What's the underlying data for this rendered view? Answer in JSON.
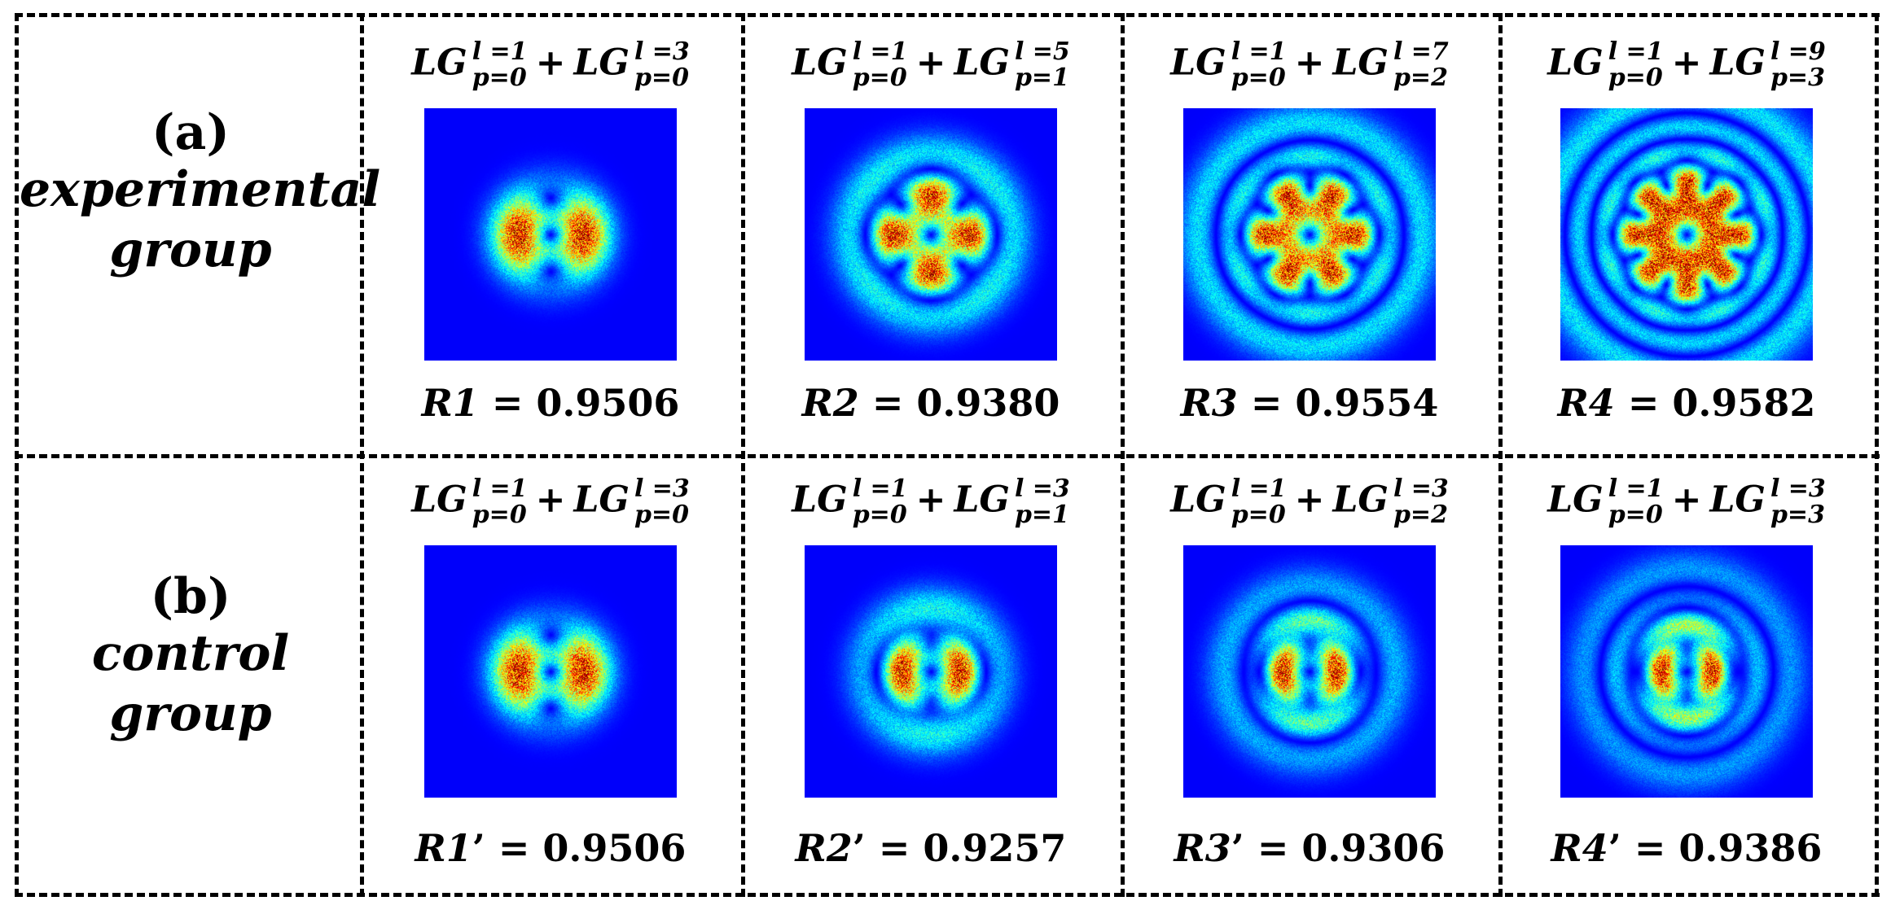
{
  "rows": [
    {
      "tag": "(a)",
      "name_line1": "experimental",
      "name_line2": "group",
      "cells": [
        {
          "term1": {
            "base": "LG",
            "l": "l =1",
            "p": "p=0"
          },
          "term2": {
            "base": "LG",
            "l": "l =3",
            "p": "p=0"
          },
          "ratio_var": "R1",
          "ratio_prime": "",
          "ratio_text": " = 0.9506",
          "l": 3,
          "p": 0
        },
        {
          "term1": {
            "base": "LG",
            "l": "l =1",
            "p": "p=0"
          },
          "term2": {
            "base": "LG",
            "l": "l =5",
            "p": "p=1"
          },
          "ratio_var": "R2",
          "ratio_prime": "",
          "ratio_text": " = 0.9380",
          "l": 5,
          "p": 1
        },
        {
          "term1": {
            "base": "LG",
            "l": "l =1",
            "p": "p=0"
          },
          "term2": {
            "base": "LG",
            "l": "l =7",
            "p": "p=2"
          },
          "ratio_var": "R3",
          "ratio_prime": "",
          "ratio_text": " = 0.9554",
          "l": 7,
          "p": 2
        },
        {
          "term1": {
            "base": "LG",
            "l": "l =1",
            "p": "p=0"
          },
          "term2": {
            "base": "LG",
            "l": "l =9",
            "p": "p=3"
          },
          "ratio_var": "R4",
          "ratio_prime": "",
          "ratio_text": " = 0.9582",
          "l": 9,
          "p": 3
        }
      ]
    },
    {
      "tag": "(b)",
      "name_line1": "control group",
      "name_line2": "",
      "cells": [
        {
          "term1": {
            "base": "LG",
            "l": "l =1",
            "p": "p=0"
          },
          "term2": {
            "base": "LG",
            "l": "l =3",
            "p": "p=0"
          },
          "ratio_var": "R1",
          "ratio_prime": "’",
          "ratio_text": " = 0.9506",
          "l": 3,
          "p": 0
        },
        {
          "term1": {
            "base": "LG",
            "l": "l =1",
            "p": "p=0"
          },
          "term2": {
            "base": "LG",
            "l": "l =3",
            "p": "p=1"
          },
          "ratio_var": "R2",
          "ratio_prime": "’",
          "ratio_text": " = 0.9257",
          "l": 3,
          "p": 1
        },
        {
          "term1": {
            "base": "LG",
            "l": "l =1",
            "p": "p=0"
          },
          "term2": {
            "base": "LG",
            "l": "l =3",
            "p": "p=2"
          },
          "ratio_var": "R3",
          "ratio_prime": "’",
          "ratio_text": " = 0.9306",
          "l": 3,
          "p": 2
        },
        {
          "term1": {
            "base": "LG",
            "l": "l =1",
            "p": "p=0"
          },
          "term2": {
            "base": "LG",
            "l": "l =3",
            "p": "p=3"
          },
          "ratio_var": "R4",
          "ratio_prime": "’",
          "ratio_text": " = 0.9386",
          "l": 3,
          "p": 3
        }
      ]
    }
  ],
  "colors": {
    "background_field": "#00008f",
    "border": "#000000"
  }
}
